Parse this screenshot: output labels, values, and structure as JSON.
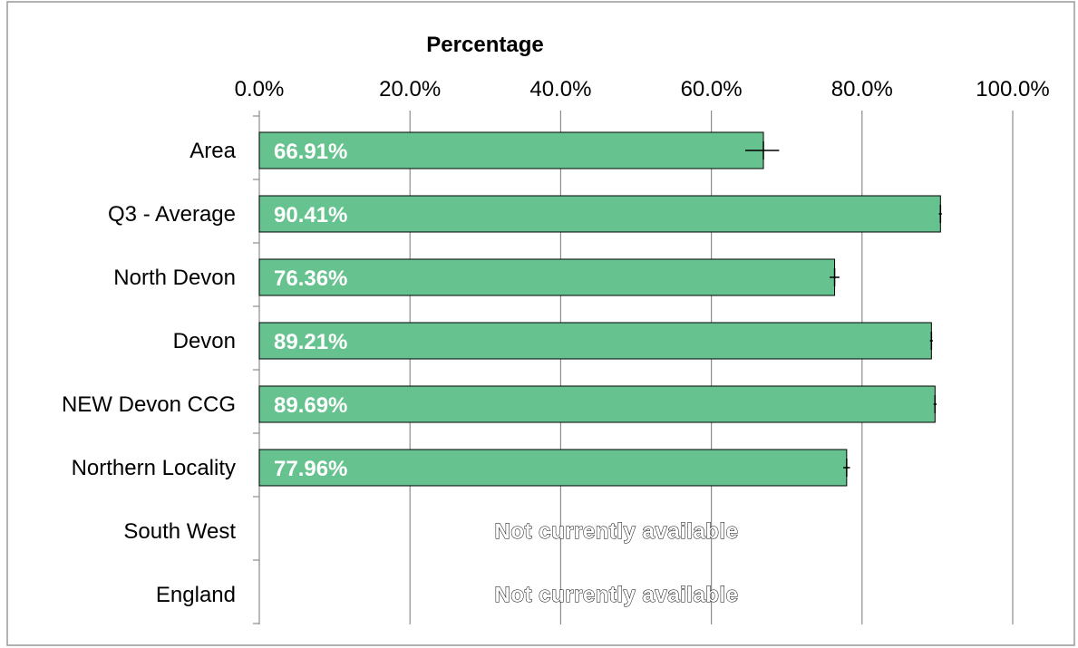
{
  "chart_data": {
    "type": "bar",
    "orientation": "horizontal",
    "xlabel": "Percentage",
    "xlim": [
      0,
      100
    ],
    "x_ticks": [
      "0.0%",
      "20.0%",
      "40.0%",
      "60.0%",
      "80.0%",
      "100.0%"
    ],
    "grid": true,
    "bar_color": "#66c28f",
    "categories": [
      "Area",
      "Q3 - Average",
      "North Devon",
      "Devon",
      "NEW Devon CCG",
      "Northern Locality",
      "South West",
      "England"
    ],
    "values": [
      66.91,
      90.41,
      76.36,
      89.21,
      89.69,
      77.96,
      null,
      null
    ],
    "data_labels": [
      "66.91%",
      "90.41%",
      "76.36%",
      "89.21%",
      "89.69%",
      "77.96%",
      "Not currently available",
      "Not currently available"
    ],
    "error_bars": [
      {
        "low": 64.5,
        "high": 69.0
      },
      {
        "low": 90.2,
        "high": 90.6
      },
      {
        "low": 75.7,
        "high": 77.0
      },
      {
        "low": 89.0,
        "high": 89.4
      },
      {
        "low": 89.5,
        "high": 89.9
      },
      {
        "low": 77.5,
        "high": 78.4
      },
      null,
      null
    ]
  }
}
